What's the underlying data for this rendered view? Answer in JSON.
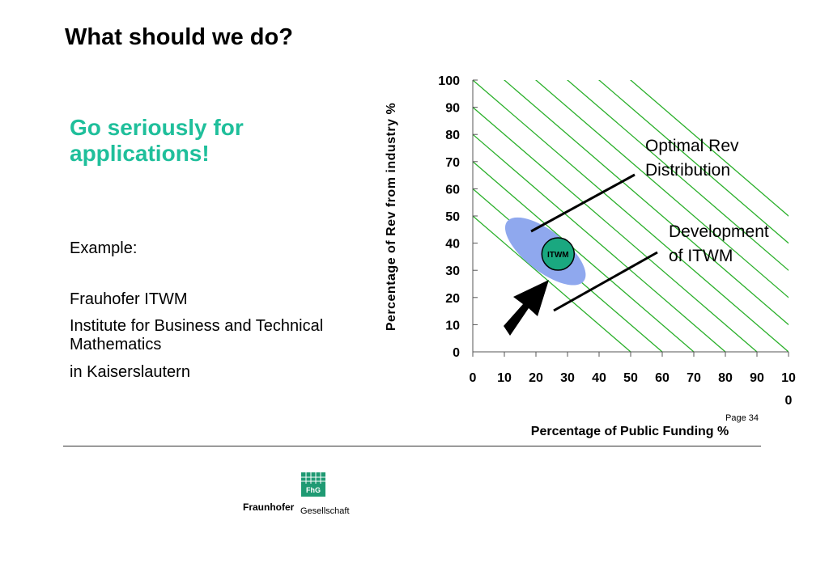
{
  "slide": {
    "title": "What should we do?",
    "subtitle": "Go seriously for applications!",
    "example_label": "Example:",
    "org_name": "Frauhofer ITWM",
    "org_full": "Institute for Business and Technical Mathematics",
    "org_city": "in Kaiserslautern",
    "page_number": "Page 34"
  },
  "chart_data": {
    "type": "scatter",
    "xlabel": "Percentage of Public Funding %",
    "ylabel": "Percentage of Rev from industry %",
    "xlim": [
      0,
      100
    ],
    "ylim": [
      0,
      100
    ],
    "x_ticks": [
      "0",
      "10",
      "20",
      "30",
      "40",
      "50",
      "60",
      "70",
      "80",
      "90",
      "100"
    ],
    "y_ticks": [
      "0",
      "10",
      "20",
      "30",
      "40",
      "50",
      "60",
      "70",
      "80",
      "90",
      "100"
    ],
    "iso_lines_constant_sum": [
      50,
      60,
      70,
      80,
      90,
      100,
      110,
      120,
      130,
      140,
      150
    ],
    "optimal_region": {
      "cx": 23,
      "cy": 37,
      "label_lines": [
        "Optimal Rev",
        "Distribution"
      ]
    },
    "itwm_point": {
      "x": 27,
      "y": 36,
      "label": "ITWM"
    },
    "development_label_lines": [
      "Development",
      "of ITWM"
    ],
    "colors": {
      "lines": "#2bb02b",
      "region": "#8fa8ee",
      "point": "#1aa880",
      "arrow": "#000000"
    }
  },
  "logo": {
    "abbr": "FhG",
    "name": "Fraunhofer",
    "sub": "Gesellschaft",
    "color": "#1f9a73"
  }
}
